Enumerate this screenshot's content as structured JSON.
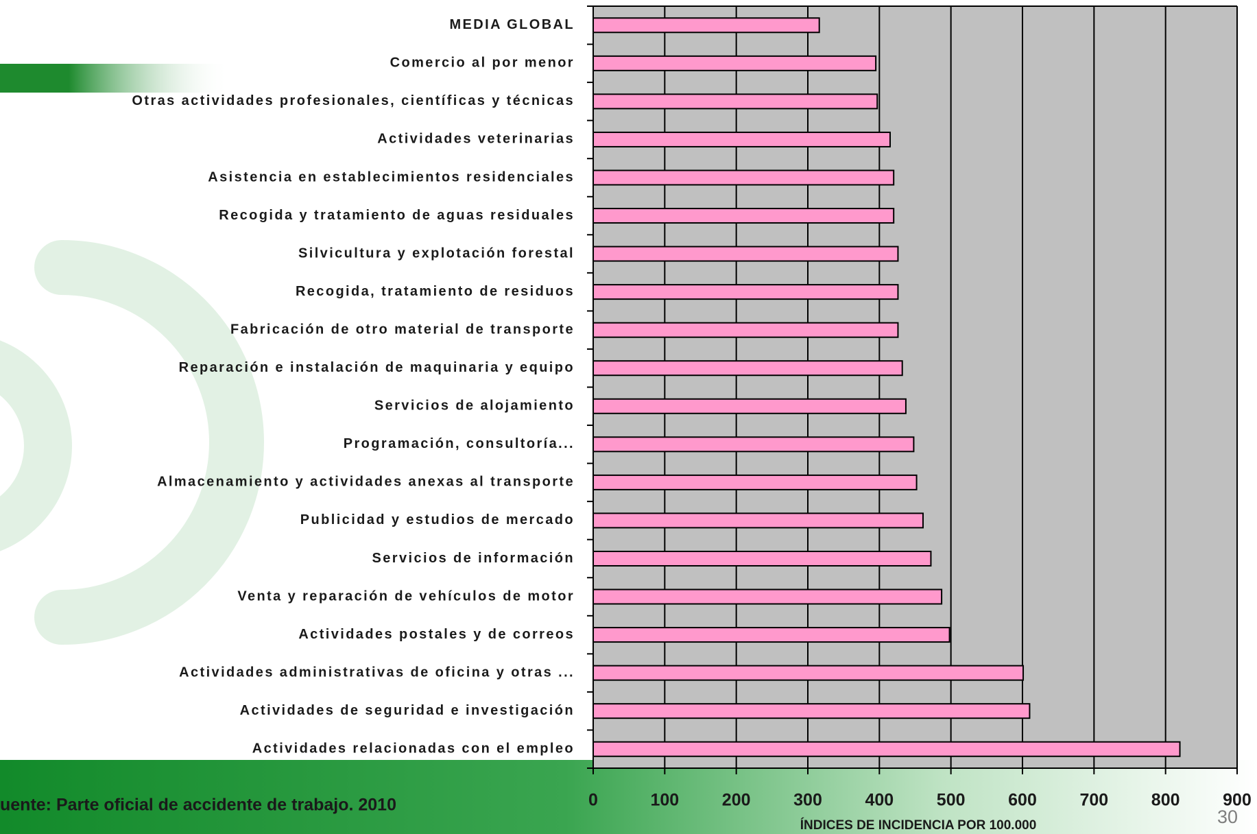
{
  "chart_data": {
    "type": "barh",
    "x_axis_label": "ÍNDICES DE INCIDENCIA POR 100.000",
    "source": "uente: Parte oficial de accidente de trabajo. 2010",
    "page_number": "30",
    "categories": [
      "MEDIA GLOBAL",
      "Comercio al por menor",
      "Otras actividades profesionales, científicas y técnicas",
      "Actividades veterinarias",
      "Asistencia en establecimientos residenciales",
      "Recogida y tratamiento de aguas residuales",
      "Silvicultura y explotación forestal",
      "Recogida, tratamiento de residuos",
      "Fabricación de otro material de transporte",
      "Reparación e instalación de maquinaria y equipo",
      "Servicios de alojamiento",
      "Programación, consultoría...",
      "Almacenamiento y actividades anexas al transporte",
      "Publicidad y estudios de mercado",
      "Servicios de información",
      "Venta y reparación de vehículos de motor",
      "Actividades postales y de correos",
      "Actividades administrativas de oficina y otras ...",
      "Actividades de seguridad e investigación",
      "Actividades relacionadas con el empleo"
    ],
    "values": [
      316,
      395,
      397,
      415,
      420,
      420,
      426,
      426,
      426,
      432,
      437,
      448,
      452,
      461,
      472,
      487,
      498,
      601,
      610,
      820
    ],
    "color": "#ff99cc",
    "plot_background": "#c0c0c0",
    "xlim": [
      0,
      900
    ],
    "xticks": [
      0,
      100,
      200,
      300,
      400,
      500,
      600,
      700,
      800,
      900
    ],
    "grid": true
  }
}
